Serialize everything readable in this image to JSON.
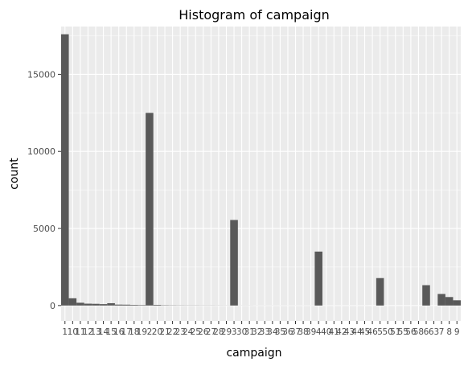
{
  "chart_data": {
    "type": "bar",
    "title": "Histogram of campaign",
    "xlabel": "campaign",
    "ylabel": "count",
    "ylim": [
      -1000,
      18100
    ],
    "yticks": [
      0,
      5000,
      10000,
      15000
    ],
    "ytick_labels": [
      "0",
      "5000",
      "10000",
      "15000"
    ],
    "grid": true,
    "categories": [
      "1",
      "10",
      "11",
      "12",
      "13",
      "14",
      "15",
      "16",
      "17",
      "18",
      "19",
      "2",
      "20",
      "21",
      "22",
      "23",
      "24",
      "25",
      "26",
      "27",
      "28",
      "29",
      "3",
      "30",
      "31",
      "32",
      "33",
      "34",
      "35",
      "36",
      "37",
      "38",
      "39",
      "4",
      "40",
      "41",
      "42",
      "43",
      "44",
      "45",
      "46",
      "5",
      "50",
      "51",
      "55",
      "56",
      "58",
      "6",
      "63",
      "7",
      "8",
      "9"
    ],
    "values": [
      17600,
      470,
      180,
      120,
      110,
      90,
      150,
      60,
      55,
      40,
      30,
      12500,
      40,
      20,
      15,
      12,
      10,
      10,
      8,
      8,
      7,
      6,
      5550,
      5,
      5,
      4,
      4,
      4,
      3,
      3,
      3,
      3,
      3,
      3500,
      2,
      2,
      2,
      2,
      2,
      2,
      1,
      1780,
      1,
      1,
      1,
      1,
      1,
      1320,
      1,
      750,
      550,
      340
    ],
    "fill_color": "#595959",
    "panel_color": "#ebebeb",
    "grid_color": "#ffffff"
  }
}
